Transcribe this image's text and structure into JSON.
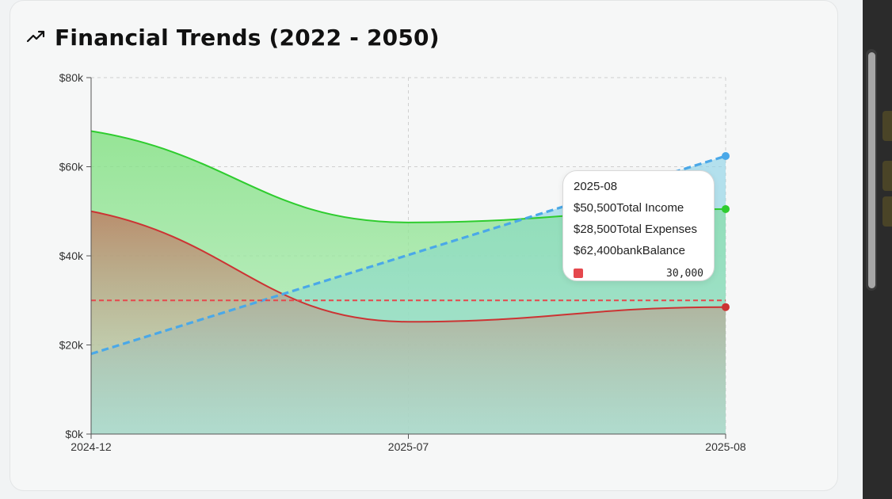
{
  "header": {
    "title": "Financial Trends (2022 - 2050)",
    "icon": "trending-up-icon"
  },
  "tooltip": {
    "date": "2025-08",
    "income_value": "$50,500",
    "income_label": "Total Income",
    "expenses_value": "$28,500",
    "expenses_label": "Total Expenses",
    "balance_value": "$62,400",
    "balance_label": "bankBalance",
    "reference_value": "30,000",
    "reference_color": "#e5484d"
  },
  "colors": {
    "income": "#2ecc2e",
    "expenses": "#cc3333",
    "balance": "#4aa8e8",
    "reference": "#e5484d"
  },
  "chart_data": {
    "type": "area",
    "title": "Financial Trends (2022 - 2050)",
    "categories": [
      "2024-12",
      "2025-07",
      "2025-08"
    ],
    "x_ticks": [
      "2024-12",
      "2025-07",
      "2025-08"
    ],
    "y_ticks": [
      "$0k",
      "$20k",
      "$40k",
      "$60k",
      "$80k"
    ],
    "ylim": [
      0,
      80000
    ],
    "grid": true,
    "series": [
      {
        "name": "Total Income",
        "type": "area",
        "values": [
          68000,
          47500,
          50500
        ],
        "color": "#2ecc2e"
      },
      {
        "name": "Total Expenses",
        "type": "area",
        "values": [
          50000,
          25200,
          28500
        ],
        "color": "#cc3333"
      },
      {
        "name": "bankBalance",
        "type": "line-dashed",
        "values": [
          18000,
          40200,
          62400
        ],
        "color": "#4aa8e8"
      }
    ],
    "reference_line": {
      "value": 30000,
      "color": "#e5484d",
      "style": "dashed"
    }
  }
}
